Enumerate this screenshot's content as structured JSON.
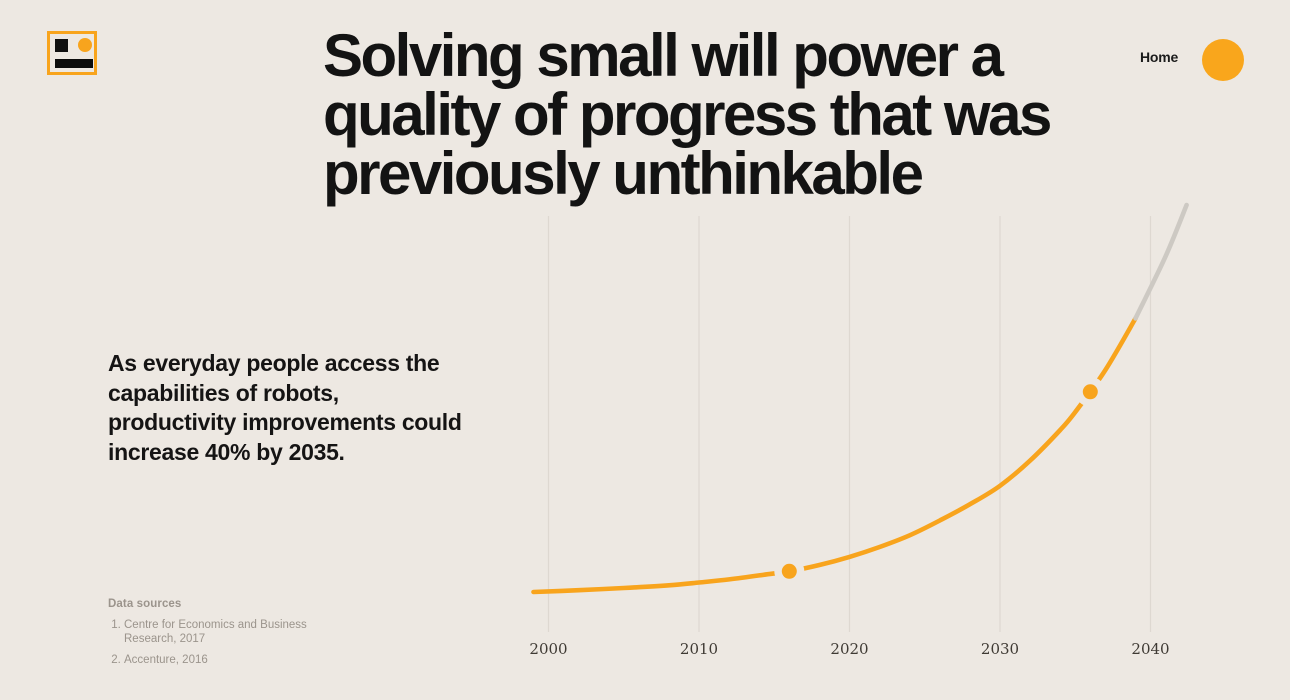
{
  "page": {
    "background": "#EDE8E2",
    "accent": "#F8A41D"
  },
  "logo": {
    "name": "brand-mark",
    "border_color": "#F8A41D",
    "square_color": "#101010",
    "dot_color": "#F8A41D",
    "bar_color": "#0C0C0C"
  },
  "nav": {
    "home_label": "Home"
  },
  "headline": {
    "highlight": "Solving small",
    "line1_rest": " will power a",
    "line2": "quality of progress that was",
    "line3": "previously unthinkable"
  },
  "intro": {
    "lines": [
      "As everyday people access the",
      "capabilities of robots,",
      "productivity improvements could",
      "increase 40% by 2035."
    ]
  },
  "sources": {
    "title": "Data sources",
    "items": [
      "Centre for Economics and Business Research, 2017",
      "Accenture, 2016"
    ]
  },
  "chart_data": {
    "type": "line",
    "title": "",
    "xlabel": "",
    "ylabel": "",
    "x_ticks": [
      2000,
      2010,
      2020,
      2030,
      2040
    ],
    "x_range": [
      1999,
      2042.5
    ],
    "y_axis_visible": false,
    "grid": "vertical-only",
    "grid_color": "#DED8D1",
    "tick_color": "#3F3A34",
    "unit": "estimated productivity improvement, % (unlabeled axis)",
    "series": [
      {
        "name": "productivity-growth",
        "style": "solid",
        "color": "#F8A41D",
        "points": [
          [
            1999,
            0
          ],
          [
            2002,
            0.4
          ],
          [
            2005,
            0.9
          ],
          [
            2008,
            1.5
          ],
          [
            2010,
            2.1
          ],
          [
            2012,
            2.8
          ],
          [
            2014,
            3.7
          ],
          [
            2016,
            4.6
          ],
          [
            2018,
            6.0
          ],
          [
            2020,
            7.8
          ],
          [
            2022,
            10.0
          ],
          [
            2024,
            12.6
          ],
          [
            2026,
            15.9
          ],
          [
            2028,
            19.5
          ],
          [
            2030,
            23.6
          ],
          [
            2032,
            29.2
          ],
          [
            2034,
            36.0
          ],
          [
            2035,
            40.0
          ],
          [
            2037,
            49.3
          ],
          [
            2039,
            60.8
          ]
        ]
      },
      {
        "name": "projection",
        "style": "solid",
        "color": "#CDC9C3",
        "points": [
          [
            2039,
            60.8
          ],
          [
            2041,
            74.6
          ],
          [
            2042.4,
            86.0
          ]
        ]
      }
    ],
    "markers": [
      {
        "year": 2016,
        "value": 4.6
      },
      {
        "year": 2036,
        "value": 44.5
      }
    ]
  }
}
